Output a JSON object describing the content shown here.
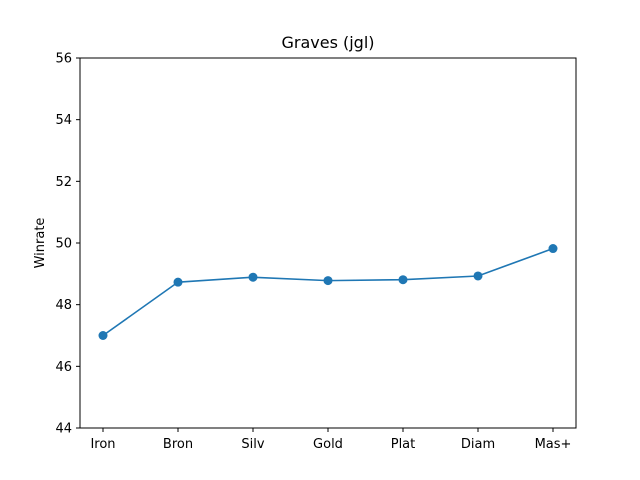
{
  "chart_data": {
    "type": "line",
    "title": "Graves (jgl)",
    "xlabel": "",
    "ylabel": "Winrate",
    "categories": [
      "Iron",
      "Bron",
      "Silv",
      "Gold",
      "Plat",
      "Diam",
      "Mas+"
    ],
    "series": [
      {
        "values": [
          47.0,
          48.73,
          48.89,
          48.78,
          48.81,
          48.93,
          49.82
        ],
        "color": "#1f77b4",
        "marker": "circle"
      }
    ],
    "ylim": [
      44,
      56
    ],
    "yticks": [
      44,
      46,
      48,
      50,
      52,
      54,
      56
    ],
    "grid": false,
    "legend": "none"
  }
}
